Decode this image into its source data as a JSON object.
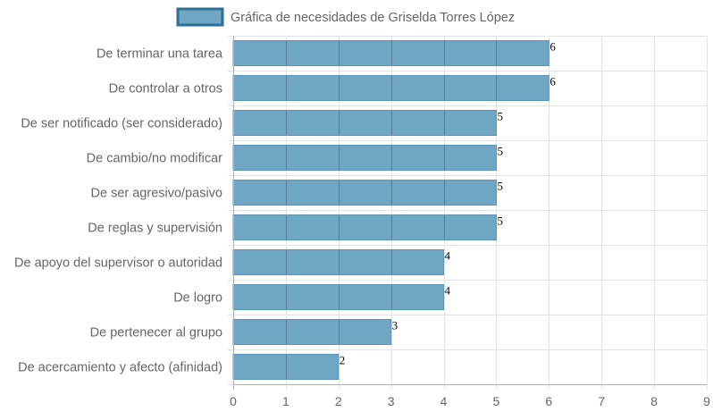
{
  "chart_data": {
    "type": "bar",
    "orientation": "horizontal",
    "categories": [
      "De terminar una tarea",
      "De controlar a otros",
      "De ser notificado (ser considerado)",
      "De cambio/no modificar",
      "De ser agresivo/pasivo",
      "De reglas y supervisión",
      "De apoyo del supervisor o autoridad",
      "De logro",
      "De pertenecer al grupo",
      "De acercamiento y afecto (afinidad)"
    ],
    "series": [
      {
        "name": "Gráfica de necesidades de Griselda Torres López",
        "values": [
          6,
          6,
          5,
          5,
          5,
          5,
          4,
          4,
          3,
          2
        ]
      }
    ],
    "xlim": [
      0,
      9
    ],
    "xticks": [
      0,
      1,
      2,
      3,
      4,
      5,
      6,
      7,
      8,
      9
    ],
    "grid": true,
    "legend_position": "top",
    "data_labels": true,
    "colors": {
      "bar_fill": "#6fa6c4",
      "bar_stroke": "#5b93b4",
      "legend_fill": "#6fa6c4",
      "legend_stroke": "#2e6f96",
      "grid_line": "#e4e4e4",
      "grid_line_bar": "#3c5f77",
      "axis_line": "#b0b0b0",
      "text": "#666666"
    }
  }
}
